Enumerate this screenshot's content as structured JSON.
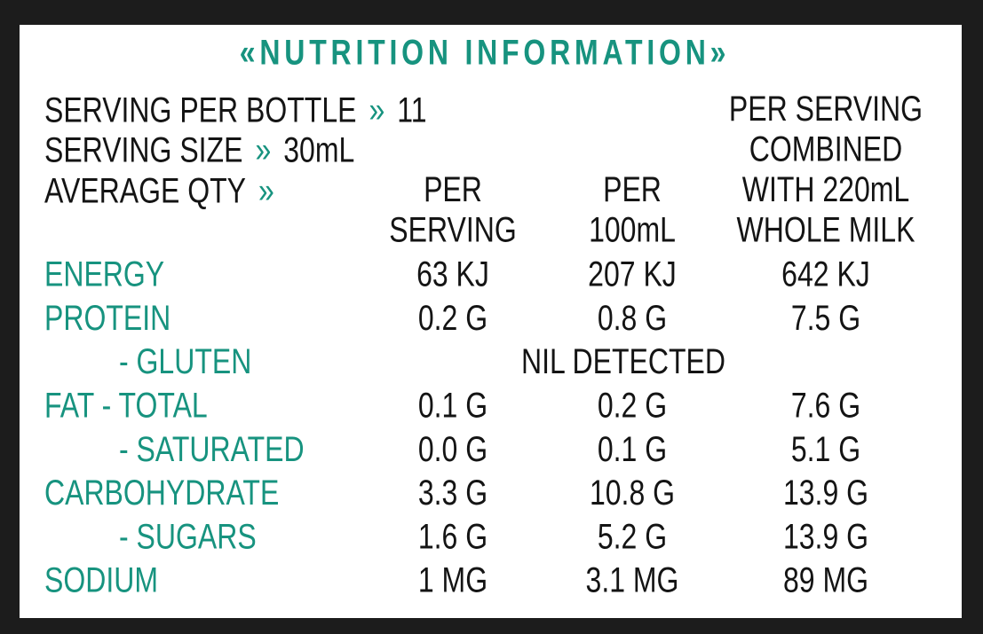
{
  "title": "«NUTRITION INFORMATION»",
  "serving": {
    "per_bottle_label": "SERVING PER BOTTLE",
    "per_bottle_arrow": "»",
    "per_bottle_value": "11",
    "size_label": "SERVING SIZE",
    "size_arrow": "»",
    "size_value": "30mL",
    "average_label": "AVERAGE QTY",
    "average_arrow": "»"
  },
  "columns": [
    [
      "PER",
      "SERVING"
    ],
    [
      "PER",
      "100mL"
    ],
    [
      "PER SERVING",
      "COMBINED",
      "WITH 220mL",
      "WHOLE MILK"
    ]
  ],
  "rows": [
    {
      "label": "ENERGY",
      "values": [
        "63 KJ",
        "207 KJ",
        "642 KJ"
      ]
    },
    {
      "label": "PROTEIN",
      "values": [
        "0.2 G",
        "0.8 G",
        "7.5 G"
      ]
    },
    {
      "label": "- GLUTEN",
      "note": "NIL DETECTED"
    },
    {
      "label": "FAT - TOTAL",
      "values": [
        "0.1 G",
        "0.2 G",
        "7.6 G"
      ]
    },
    {
      "label": "- SATURATED",
      "values": [
        "0.0 G",
        "0.1 G",
        "5.1 G"
      ]
    },
    {
      "label": "CARBOHYDRATE",
      "values": [
        "3.3 G",
        "10.8 G",
        "13.9 G"
      ]
    },
    {
      "label": "- SUGARS",
      "values": [
        "1.6 G",
        "5.2 G",
        "13.9 G"
      ]
    },
    {
      "label": "SODIUM",
      "values": [
        "1 MG",
        "3.1 MG",
        "89 MG"
      ]
    }
  ]
}
